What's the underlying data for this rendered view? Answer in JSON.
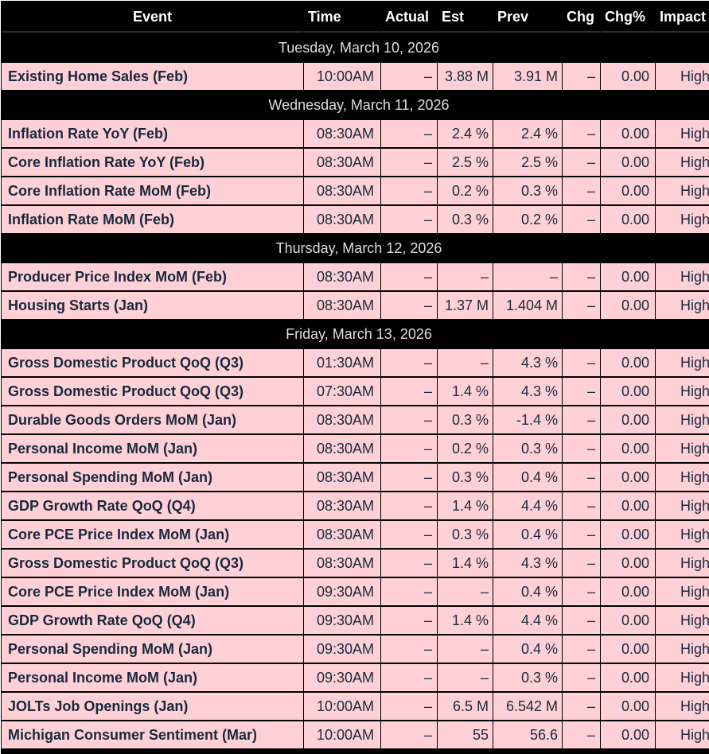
{
  "colors": {
    "header_bg": "#000000",
    "header_text": "#FFFFFF",
    "separator_bg": "#000000",
    "separator_text": "#DEDEDE",
    "row_bg": "#FFD0D5",
    "row_text": "#17293E"
  },
  "table": {
    "columns": [
      {
        "key": "event",
        "label": "Event"
      },
      {
        "key": "time",
        "label": "Time"
      },
      {
        "key": "actual",
        "label": "Actual"
      },
      {
        "key": "est",
        "label": "Est"
      },
      {
        "key": "prev",
        "label": "Prev"
      },
      {
        "key": "chg",
        "label": "Chg"
      },
      {
        "key": "chgpct",
        "label": "Chg%"
      },
      {
        "key": "impact",
        "label": "Impact"
      }
    ],
    "sections": [
      {
        "date": "Tuesday, March 10, 2026",
        "rows": [
          [
            "Existing Home Sales (Feb)",
            "10:00AM",
            "–",
            "3.88 M",
            "3.91 M",
            "–",
            "0.00",
            "High"
          ]
        ]
      },
      {
        "date": "Wednesday, March 11, 2026",
        "rows": [
          [
            "Inflation Rate YoY (Feb)",
            "08:30AM",
            "–",
            "2.4 %",
            "2.4 %",
            "–",
            "0.00",
            "High"
          ],
          [
            "Core Inflation Rate YoY (Feb)",
            "08:30AM",
            "–",
            "2.5 %",
            "2.5 %",
            "–",
            "0.00",
            "High"
          ],
          [
            "Core Inflation Rate MoM (Feb)",
            "08:30AM",
            "–",
            "0.2 %",
            "0.3 %",
            "–",
            "0.00",
            "High"
          ],
          [
            "Inflation Rate MoM (Feb)",
            "08:30AM",
            "–",
            "0.3 %",
            "0.2 %",
            "–",
            "0.00",
            "High"
          ]
        ]
      },
      {
        "date": "Thursday, March 12, 2026",
        "rows": [
          [
            "Producer Price Index MoM (Feb)",
            "08:30AM",
            "–",
            "–",
            "–",
            "–",
            "0.00",
            "High"
          ],
          [
            "Housing Starts (Jan)",
            "08:30AM",
            "–",
            "1.37 M",
            "1.404 M",
            "–",
            "0.00",
            "High"
          ]
        ]
      },
      {
        "date": "Friday, March 13, 2026",
        "rows": [
          [
            "Gross Domestic Product QoQ (Q3)",
            "01:30AM",
            "–",
            "–",
            "4.3 %",
            "–",
            "0.00",
            "High"
          ],
          [
            "Gross Domestic Product QoQ (Q3)",
            "07:30AM",
            "–",
            "1.4 %",
            "4.3 %",
            "–",
            "0.00",
            "High"
          ],
          [
            "Durable Goods Orders MoM (Jan)",
            "08:30AM",
            "–",
            "0.3 %",
            "-1.4 %",
            "–",
            "0.00",
            "High"
          ],
          [
            "Personal Income MoM (Jan)",
            "08:30AM",
            "–",
            "0.2 %",
            "0.3 %",
            "–",
            "0.00",
            "High"
          ],
          [
            "Personal Spending MoM (Jan)",
            "08:30AM",
            "–",
            "0.3 %",
            "0.4 %",
            "–",
            "0.00",
            "High"
          ],
          [
            "GDP Growth Rate QoQ (Q4)",
            "08:30AM",
            "–",
            "1.4 %",
            "4.4 %",
            "–",
            "0.00",
            "High"
          ],
          [
            "Core PCE Price Index MoM (Jan)",
            "08:30AM",
            "–",
            "0.3 %",
            "0.4 %",
            "–",
            "0.00",
            "High"
          ],
          [
            "Gross Domestic Product QoQ (Q3)",
            "08:30AM",
            "–",
            "1.4 %",
            "4.3 %",
            "–",
            "0.00",
            "High"
          ],
          [
            "Core PCE Price Index MoM (Jan)",
            "09:30AM",
            "–",
            "–",
            "0.4 %",
            "–",
            "0.00",
            "High"
          ],
          [
            "GDP Growth Rate QoQ (Q4)",
            "09:30AM",
            "–",
            "1.4 %",
            "4.4 %",
            "–",
            "0.00",
            "High"
          ],
          [
            "Personal Spending MoM (Jan)",
            "09:30AM",
            "–",
            "–",
            "0.4 %",
            "–",
            "0.00",
            "High"
          ],
          [
            "Personal Income MoM (Jan)",
            "09:30AM",
            "–",
            "–",
            "0.3 %",
            "–",
            "0.00",
            "High"
          ],
          [
            "JOLTs Job Openings (Jan)",
            "10:00AM",
            "–",
            "6.5 M",
            "6.542 M",
            "–",
            "0.00",
            "High"
          ],
          [
            "Michigan Consumer Sentiment (Mar)",
            "10:00AM",
            "–",
            "55",
            "56.6",
            "–",
            "0.00",
            "High"
          ]
        ]
      }
    ]
  }
}
